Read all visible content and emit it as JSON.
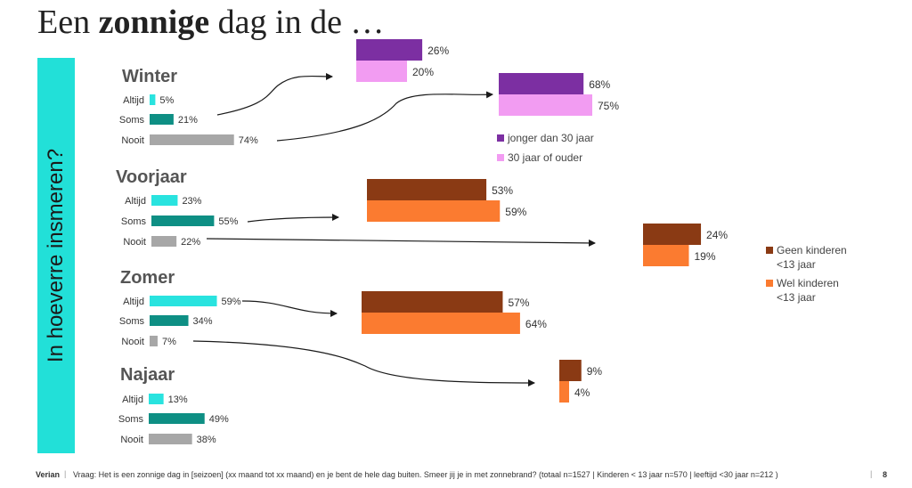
{
  "title": {
    "prefix": "Een ",
    "bold": "zonnige",
    "suffix": " dag in de …"
  },
  "sidebar_label": "In hoeverre insmeren?",
  "colors": {
    "altijd": "#29e3df",
    "soms": "#0e8f84",
    "nooit": "#a7a7a7",
    "young": "#7c2fa2",
    "old": "#f29cf2",
    "no_kids": "#8a3a14",
    "kids": "#fb7b30",
    "arrow": "#1a1a1a"
  },
  "chart_data": {
    "type": "bar",
    "seasons": [
      {
        "name": "Winter",
        "categories": [
          "Altijd",
          "Soms",
          "Nooit"
        ],
        "values": [
          5,
          21,
          74
        ]
      },
      {
        "name": "Voorjaar",
        "categories": [
          "Altijd",
          "Soms",
          "Nooit"
        ],
        "values": [
          23,
          55,
          22
        ]
      },
      {
        "name": "Zomer",
        "categories": [
          "Altijd",
          "Soms",
          "Nooit"
        ],
        "values": [
          59,
          34,
          7
        ]
      },
      {
        "name": "Najaar",
        "categories": [
          "Altijd",
          "Soms",
          "Nooit"
        ],
        "values": [
          13,
          49,
          38
        ]
      }
    ],
    "breakdowns": [
      {
        "season": "Winter",
        "answer": "Soms",
        "values": [
          26,
          20
        ],
        "series": [
          "jonger dan 30 jaar",
          "30 jaar of ouder"
        ]
      },
      {
        "season": "Winter",
        "answer": "Nooit",
        "values": [
          68,
          75
        ],
        "series": [
          "jonger dan 30 jaar",
          "30 jaar of ouder"
        ]
      },
      {
        "season": "Voorjaar",
        "answer": "Soms",
        "values": [
          53,
          59
        ],
        "series": [
          "Geen kinderen <13 jaar",
          "Wel kinderen <13 jaar"
        ]
      },
      {
        "season": "Voorjaar",
        "answer": "Nooit",
        "values": [
          24,
          19
        ],
        "series": [
          "Geen kinderen <13 jaar",
          "Wel kinderen <13 jaar"
        ]
      },
      {
        "season": "Zomer",
        "answer": "Altijd",
        "values": [
          57,
          64
        ],
        "series": [
          "Geen kinderen <13 jaar",
          "Wel kinderen <13 jaar"
        ]
      },
      {
        "season": "Zomer",
        "answer": "Nooit",
        "values": [
          9,
          4
        ],
        "series": [
          "Geen kinderen <13 jaar",
          "Wel kinderen <13 jaar"
        ]
      }
    ],
    "legends": [
      {
        "items": [
          "jonger dan 30 jaar",
          "30 jaar of ouder"
        ]
      },
      {
        "items": [
          "Geen kinderen\n<13 jaar",
          "Wel kinderen\n<13 jaar"
        ]
      }
    ]
  },
  "footer": {
    "brand": "Verian",
    "question": "Vraag: Het is een zonnige dag in [seizoen] (xx maand tot xx maand) en je bent de hele dag buiten. Smeer jij je in met zonnebrand? (totaal n=1527 | Kinderen < 13 jaar n=570 | leeftijd <30 jaar n=212 )",
    "page": "8"
  }
}
